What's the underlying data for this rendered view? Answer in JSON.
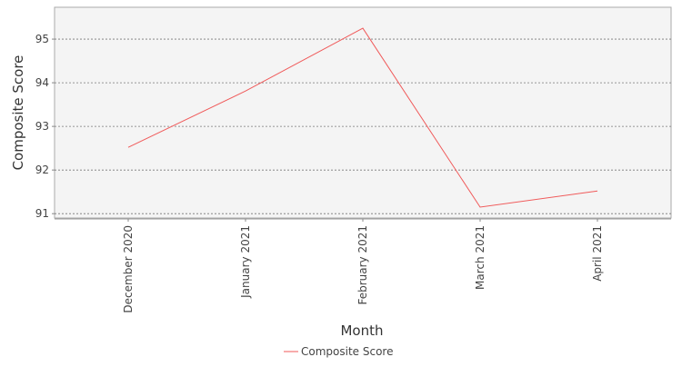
{
  "chart_data": {
    "type": "line",
    "x_label": "Month",
    "y_label": "Composite Score",
    "categories": [
      "December 2020",
      "January 2021",
      "February 2021",
      "March 2021",
      "April 2021"
    ],
    "series": [
      {
        "name": "Composite Score",
        "color": "#f05a5a",
        "values": [
          92.52,
          93.81,
          95.25,
          91.15,
          91.52
        ]
      }
    ],
    "ylim": [
      90.9,
      95.73
    ],
    "yticks": [
      91,
      92,
      93,
      94,
      95
    ],
    "grid": true,
    "legend": "bottom"
  }
}
